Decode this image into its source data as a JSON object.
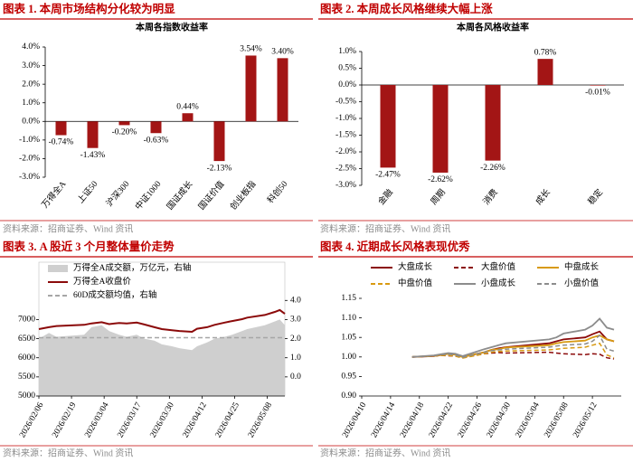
{
  "panels": [
    {
      "heading": "图表 1. 本周市场结构分化较为明显",
      "source": "资料来源：招商证券、Wind 资讯"
    },
    {
      "heading": "图表 2. 本周成长风格继续大幅上涨",
      "source": "资料来源：招商证券、Wind 资讯"
    },
    {
      "heading": "图表 3. A 股近 3 个月整体量价走势",
      "source": "资料来源：招商证券、Wind 资讯"
    },
    {
      "heading": "图表 4. 近期成长风格表现优秀",
      "source": "资料来源：招商证券、Wind 资讯"
    }
  ],
  "chart_data": [
    {
      "type": "bar",
      "title": "本周各指数收益率",
      "color": "#a31515",
      "categories": [
        "万得全A",
        "上证50",
        "沪深300",
        "中证1000",
        "国证成长",
        "国证价值",
        "创业板指",
        "科创50"
      ],
      "values": [
        -0.74,
        -1.43,
        -0.2,
        -0.63,
        0.44,
        -2.13,
        3.54,
        3.4
      ],
      "value_labels": [
        "-0.74%",
        "-1.43%",
        "-0.20%",
        "-0.63%",
        "0.44%",
        "-2.13%",
        "3.54%",
        "3.40%"
      ],
      "ylim": [
        -3.0,
        4.0
      ],
      "yticks": [
        {
          "value": 4,
          "label": "4.0%"
        },
        {
          "value": 3,
          "label": "3.0%"
        },
        {
          "value": 2,
          "label": "2.0%"
        },
        {
          "value": 1,
          "label": "1.0%"
        },
        {
          "value": 0,
          "label": "0.0%"
        },
        {
          "value": -1,
          "label": "-1.0%"
        },
        {
          "value": -2,
          "label": "-2.0%"
        },
        {
          "value": -3,
          "label": "-3.0%"
        }
      ]
    },
    {
      "type": "bar",
      "title": "本周各风格收益率",
      "color": "#a31515",
      "categories": [
        "金融",
        "周期",
        "消费",
        "成长",
        "稳定"
      ],
      "values": [
        -2.47,
        -2.62,
        -2.26,
        0.78,
        -0.01
      ],
      "value_labels": [
        "-2.47%",
        "-2.62%",
        "-2.26%",
        "0.78%",
        "-0.01%"
      ],
      "ylim": [
        -3.0,
        1.0
      ],
      "yticks": [
        {
          "value": 1,
          "label": "1.0%"
        },
        {
          "value": 0.5,
          "label": "0.5%"
        },
        {
          "value": 0,
          "label": "0.0%"
        },
        {
          "value": -0.5,
          "label": "-0.5%"
        },
        {
          "value": -1,
          "label": "-1.0%"
        },
        {
          "value": -1.5,
          "label": "-1.5%"
        },
        {
          "value": -2,
          "label": "-2.0%"
        },
        {
          "value": -2.5,
          "label": "-2.5%"
        },
        {
          "value": -3,
          "label": "-3.0%"
        }
      ]
    },
    {
      "type": "combo",
      "x": [
        "2026/02/06",
        "2026/02/10",
        "2026/02/13",
        "2026/02/24",
        "2026/02/27",
        "2026/03/03",
        "2026/03/06",
        "2026/03/10",
        "2026/03/13",
        "2026/03/17",
        "2026/03/20",
        "2026/03/24",
        "2026/03/27",
        "2026/03/31",
        "2026/04/03",
        "2026/04/08",
        "2026/04/10",
        "2026/04/14",
        "2026/04/17",
        "2026/04/21",
        "2026/04/24",
        "2026/04/28",
        "2026/04/30",
        "2026/05/07",
        "2026/05/11",
        "2026/05/13",
        "2026/05/15"
      ],
      "series": [
        {
          "name": "万得全A成交额，万亿元，右轴",
          "type": "area",
          "axis": "y2",
          "color": "#cfcfcf",
          "values": [
            2.0,
            2.3,
            2.1,
            2.2,
            2.6,
            2.7,
            2.4,
            2.2,
            2.1,
            2.2,
            2.0,
            1.9,
            1.7,
            1.6,
            1.5,
            1.4,
            1.6,
            1.8,
            2.0,
            2.1,
            2.2,
            2.4,
            2.5,
            2.7,
            2.9,
            3.0,
            2.7
          ]
        },
        {
          "name": "万得全A收盘价",
          "type": "line",
          "color": "#8b0a0a",
          "values": [
            6750,
            6800,
            6830,
            6860,
            6900,
            6930,
            6880,
            6910,
            6900,
            6920,
            6870,
            6800,
            6750,
            6720,
            6700,
            6680,
            6760,
            6800,
            6860,
            6920,
            6960,
            7010,
            7050,
            7120,
            7200,
            7250,
            7150
          ]
        },
        {
          "name": "60D成交额均值，右轴",
          "type": "line",
          "dashed": true,
          "axis": "y2",
          "color": "#a6a6a6",
          "values": [
            2.05,
            2.05,
            2.05,
            2.05,
            2.05,
            2.05,
            2.05,
            2.05,
            2.05,
            2.05,
            2.05,
            2.05,
            2.05,
            2.05,
            2.05,
            2.05,
            2.05,
            2.05,
            2.05,
            2.05,
            2.05,
            2.05,
            2.05,
            2.05,
            2.05,
            2.05,
            2.05
          ]
        }
      ],
      "xlim": [
        "2026/02/06",
        "2026/05/15"
      ],
      "xticks": [
        "2026/02/06",
        "2026/02/19",
        "2026/03/04",
        "2026/03/17",
        "2026/03/30",
        "2026/04/12",
        "2026/04/25",
        "2026/05/08"
      ],
      "ylim": [
        5000,
        8500
      ],
      "yticks": [
        5000,
        5500,
        6000,
        6500,
        7000
      ],
      "y2lim": [
        -1,
        6
      ],
      "y2ticks": [
        {
          "value": 0,
          "label": "0.0"
        },
        {
          "value": 1,
          "label": "1.0"
        },
        {
          "value": 2,
          "label": "2.0"
        },
        {
          "value": 3,
          "label": "3.0"
        },
        {
          "value": 4,
          "label": "4.0"
        }
      ]
    },
    {
      "type": "line",
      "x": [
        "2026/04/17",
        "2026/04/20",
        "2026/04/21",
        "2026/04/22",
        "2026/04/23",
        "2026/04/24",
        "2026/04/27",
        "2026/04/28",
        "2026/04/29",
        "2026/04/30",
        "2026/05/06",
        "2026/05/07",
        "2026/05/08",
        "2026/05/11",
        "2026/05/12",
        "2026/05/13",
        "2026/05/14",
        "2026/05/15"
      ],
      "series": [
        {
          "name": "大盘成长",
          "color": "#8b0a0a",
          "values": [
            1.0,
            1.002,
            1.005,
            1.008,
            1.006,
            1.0,
            1.012,
            1.018,
            1.022,
            1.025,
            1.035,
            1.04,
            1.045,
            1.05,
            1.058,
            1.065,
            1.045,
            1.04
          ]
        },
        {
          "name": "大盘价值",
          "color": "#8b0a0a",
          "dashed": true,
          "values": [
            1.0,
            1.002,
            1.004,
            1.003,
            1.002,
            0.998,
            1.008,
            1.01,
            1.011,
            1.01,
            1.012,
            1.01,
            1.008,
            1.006,
            1.008,
            1.007,
            0.998,
            0.995
          ]
        },
        {
          "name": "中盘成长",
          "color": "#d89a12",
          "values": [
            1.0,
            1.003,
            1.005,
            1.008,
            1.006,
            1.0,
            1.012,
            1.018,
            1.02,
            1.024,
            1.03,
            1.035,
            1.038,
            1.042,
            1.05,
            1.055,
            1.045,
            1.04
          ]
        },
        {
          "name": "中盘价值",
          "color": "#d89a12",
          "dashed": true,
          "values": [
            1.0,
            1.002,
            1.004,
            1.004,
            1.002,
            0.997,
            1.008,
            1.012,
            1.014,
            1.015,
            1.018,
            1.02,
            1.022,
            1.025,
            1.03,
            1.035,
            1.005,
            0.998
          ]
        },
        {
          "name": "小盘成长",
          "color": "#8c8c8c",
          "values": [
            1.0,
            1.004,
            1.007,
            1.01,
            1.008,
            1.002,
            1.02,
            1.025,
            1.03,
            1.035,
            1.045,
            1.05,
            1.06,
            1.07,
            1.08,
            1.098,
            1.075,
            1.07
          ]
        },
        {
          "name": "小盘价值",
          "color": "#8c8c8c",
          "dashed": true,
          "values": [
            1.0,
            1.003,
            1.006,
            1.007,
            1.005,
            0.999,
            1.012,
            1.016,
            1.018,
            1.02,
            1.025,
            1.028,
            1.03,
            1.033,
            1.04,
            1.055,
            1.02,
            1.015
          ]
        }
      ],
      "xlim": [
        "2026/04/10",
        "2026/05/16"
      ],
      "xticks": [
        "2026/04/10",
        "2026/04/14",
        "2026/04/18",
        "2026/04/22",
        "2026/04/26",
        "2026/04/30",
        "2026/05/04",
        "2026/05/08",
        "2026/05/12"
      ],
      "ylim": [
        0.9,
        1.15
      ],
      "yticks": [
        {
          "value": 0.9,
          "label": "0.90"
        },
        {
          "value": 0.95,
          "label": "0.95"
        },
        {
          "value": 1.0,
          "label": "1.00"
        },
        {
          "value": 1.05,
          "label": "1.05"
        },
        {
          "value": 1.1,
          "label": "1.10"
        },
        {
          "value": 1.15,
          "label": "1.15"
        }
      ]
    }
  ]
}
